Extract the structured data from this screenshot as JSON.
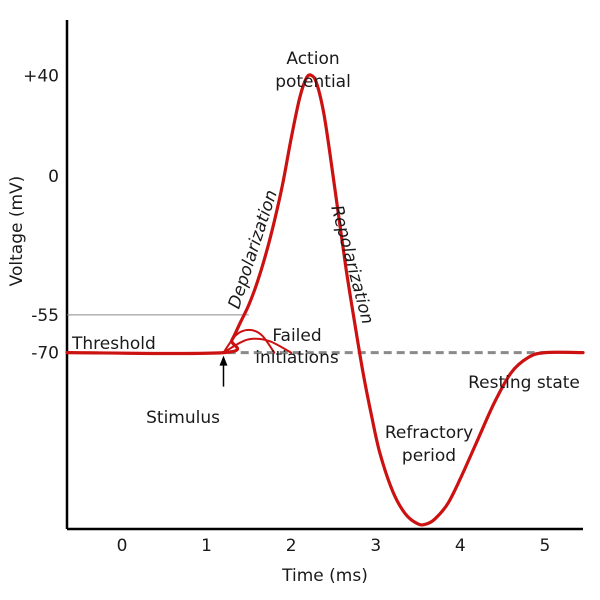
{
  "chart_data": {
    "type": "line",
    "title": "",
    "xlabel": "Time (ms)",
    "ylabel": "Voltage (mV)",
    "xlim": [
      -0.65,
      5.45
    ],
    "ylim": [
      -140,
      62
    ],
    "x_ticks": [
      0,
      1,
      2,
      3,
      4,
      5
    ],
    "x_tick_labels": [
      "0",
      "1",
      "2",
      "3",
      "4",
      "5"
    ],
    "y_ticks": [
      40,
      0,
      -55,
      -70
    ],
    "y_tick_labels": [
      "+40",
      "0",
      "-55",
      "-70"
    ],
    "grid": false,
    "colors": {
      "curve": "#cc1111",
      "threshold_line": "#8a8a8a",
      "resting_dashed": "#8a8a8a",
      "axes": "#000000"
    },
    "series": [
      {
        "x": [
          -0.65,
          1.2,
          1.3,
          1.4,
          1.5,
          1.6,
          1.7,
          1.8,
          1.9,
          2.0,
          2.1,
          2.18,
          2.24,
          2.3,
          2.38,
          2.45,
          2.55,
          2.65,
          2.75,
          2.85,
          2.95,
          3.05,
          3.2,
          3.35,
          3.5,
          3.6,
          3.7,
          3.85,
          4.0,
          4.2,
          4.4,
          4.6,
          4.8,
          5.0,
          5.45
        ],
        "values": [
          -70,
          -70,
          -65,
          -58,
          -51,
          -42,
          -31,
          -18,
          -3,
          15,
          31,
          39,
          40,
          37,
          26,
          11,
          -13,
          -37,
          -58,
          -78,
          -95,
          -110,
          -125,
          -134,
          -138,
          -138,
          -136,
          -130,
          -120,
          -105,
          -90,
          -78,
          -72,
          -70,
          -70
        ]
      },
      {
        "x": [
          1.2,
          1.35,
          1.5,
          1.65,
          1.8
        ],
        "values": [
          -70,
          -63,
          -61,
          -63,
          -70
        ]
      },
      {
        "x": [
          1.2,
          1.4,
          1.55,
          1.75,
          2.0
        ],
        "values": [
          -70,
          -66,
          -64.5,
          -65.5,
          -70
        ]
      }
    ],
    "threshold": {
      "y": -55,
      "label": "Threshold"
    },
    "resting": {
      "y": -70,
      "label": "Resting state"
    },
    "annotations": {
      "peak": "Action potential",
      "peak_line1": "Action",
      "peak_line2": "potential",
      "rise": "Depolarization",
      "fall": "Repolarization",
      "failed_line1": "Failed",
      "failed_line2": "initiations",
      "stimulus": "Stimulus",
      "refractory_line1": "Refractory",
      "refractory_line2": "period"
    }
  }
}
